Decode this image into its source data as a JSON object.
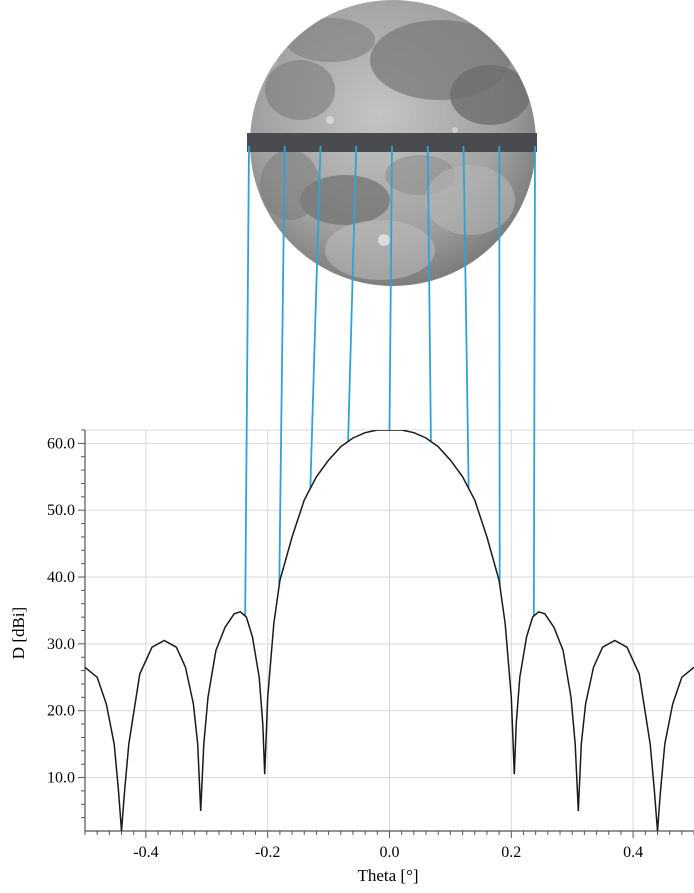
{
  "chart_data": {
    "type": "line",
    "title": "",
    "xlabel": "Theta [°]",
    "ylabel": "D [dBi]",
    "xlim": [
      -0.5,
      0.5
    ],
    "ylim": [
      2.0,
      62.0
    ],
    "x_ticks": [
      -0.4,
      -0.2,
      0.0,
      0.2,
      0.4
    ],
    "x_tick_labels": [
      "-0.4",
      "-0.2",
      "0.0",
      "0.2",
      "0.4"
    ],
    "y_ticks": [
      10.0,
      20.0,
      30.0,
      40.0,
      50.0,
      60.0
    ],
    "y_tick_labels": [
      "10.0",
      "20.0",
      "30.0",
      "40.0",
      "50.0",
      "60.0"
    ],
    "grid": true,
    "legend": "none",
    "series": [
      {
        "color": "#1a1a1a",
        "x": [
          -0.5,
          -0.48,
          -0.465,
          -0.452,
          -0.445,
          -0.44,
          -0.435,
          -0.428,
          -0.41,
          -0.39,
          -0.37,
          -0.35,
          -0.335,
          -0.322,
          -0.315,
          -0.31,
          -0.305,
          -0.298,
          -0.285,
          -0.27,
          -0.255,
          -0.245,
          -0.235,
          -0.225,
          -0.214,
          -0.208,
          -0.205,
          -0.2,
          -0.19,
          -0.18,
          -0.16,
          -0.14,
          -0.12,
          -0.1,
          -0.08,
          -0.06,
          -0.04,
          -0.02,
          0.0,
          0.02,
          0.04,
          0.06,
          0.08,
          0.1,
          0.12,
          0.14,
          0.16,
          0.18,
          0.19,
          0.2,
          0.205,
          0.208,
          0.214,
          0.225,
          0.235,
          0.245,
          0.255,
          0.27,
          0.285,
          0.298,
          0.305,
          0.31,
          0.315,
          0.322,
          0.335,
          0.35,
          0.37,
          0.39,
          0.41,
          0.428,
          0.435,
          0.44,
          0.445,
          0.452,
          0.465,
          0.48,
          0.5
        ],
        "values": [
          26.5,
          25.0,
          21.0,
          15.0,
          8.0,
          2.0,
          8.0,
          15.0,
          25.5,
          29.5,
          30.5,
          29.5,
          26.5,
          21.0,
          15.0,
          5.0,
          15.0,
          22.0,
          29.0,
          32.5,
          34.5,
          34.8,
          34.0,
          31.0,
          25.0,
          18.0,
          10.5,
          22.0,
          33.0,
          39.5,
          46.0,
          51.5,
          55.0,
          57.5,
          59.5,
          60.8,
          61.6,
          62.0,
          62.0,
          62.0,
          61.6,
          60.8,
          59.5,
          57.5,
          55.0,
          51.5,
          46.0,
          39.5,
          33.0,
          22.0,
          10.5,
          18.0,
          25.0,
          31.0,
          34.0,
          34.8,
          34.5,
          32.5,
          29.0,
          22.0,
          15.0,
          5.0,
          15.0,
          21.0,
          26.5,
          29.5,
          30.5,
          29.5,
          25.5,
          15.0,
          8.0,
          2.0,
          8.0,
          15.0,
          21.0,
          25.0,
          26.5
        ]
      }
    ],
    "projection_lines": {
      "color": "#2ea3d8",
      "x": [
        -0.237,
        -0.181,
        -0.13,
        -0.068,
        0.0,
        0.068,
        0.13,
        0.181,
        0.237
      ]
    }
  },
  "moon": {
    "surface_color": "#a7a7a7",
    "shadow_color": "#6d6d6d",
    "bar_color": "#4a4b4f"
  }
}
